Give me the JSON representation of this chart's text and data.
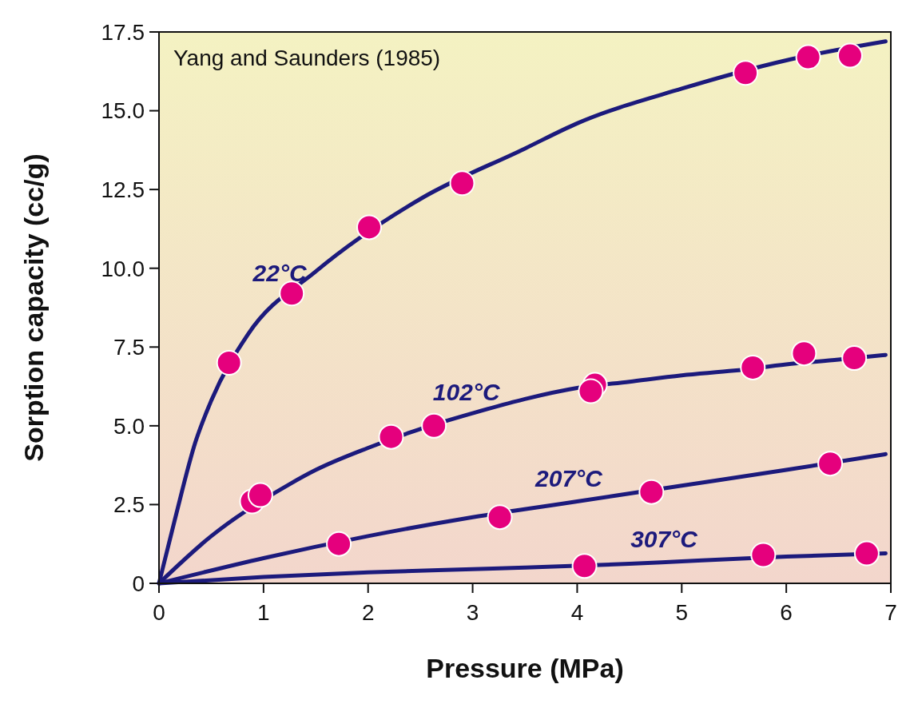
{
  "chart_data": {
    "type": "line",
    "xlabel": "Pressure (MPa)",
    "ylabel": "Sorption capacity (cc/g)",
    "annotations": [
      "Yang and Saunders (1985)"
    ],
    "xlim": [
      0,
      7
    ],
    "xticks": [
      0,
      1,
      2,
      3,
      4,
      5,
      6,
      7
    ],
    "ylim": [
      0,
      17.5
    ],
    "yticks": [
      0,
      2.5,
      {
        "value": 5,
        "label": "5.0"
      },
      7.5,
      {
        "value": 10,
        "label": "10.0"
      },
      12.5,
      {
        "value": 15,
        "label": "15.0"
      },
      17.5
    ],
    "grid": false,
    "series": [
      {
        "name": "22°C",
        "color": "#1c1a7c",
        "x": [
          0,
          0.15,
          0.35,
          0.5,
          0.85,
          1.5,
          2.5,
          3.5,
          4.0,
          5.0,
          6.0,
          6.95
        ],
        "values": [
          0,
          2.0,
          4.5,
          5.8,
          7.9,
          9.9,
          12.2,
          13.8,
          14.6,
          15.7,
          16.6,
          17.2
        ]
      },
      {
        "name": "102°C",
        "color": "#1c1a7c",
        "x": [
          0,
          0.5,
          1.25,
          1.5,
          2,
          2.5,
          3,
          3.5,
          4,
          4.5,
          5,
          5.5,
          6,
          6.5,
          6.95
        ],
        "values": [
          0,
          1.5,
          3.15,
          3.6,
          4.3,
          4.9,
          5.4,
          5.85,
          6.2,
          6.4,
          6.6,
          6.75,
          6.95,
          7.1,
          7.25
        ]
      },
      {
        "name": "207°C",
        "color": "#1c1a7c",
        "x": [
          0,
          1,
          2,
          3,
          4,
          5,
          6,
          6.95
        ],
        "values": [
          0,
          0.8,
          1.5,
          2.1,
          2.6,
          3.1,
          3.6,
          4.1
        ]
      },
      {
        "name": "307°C",
        "color": "#1c1a7c",
        "x": [
          0,
          1,
          2,
          3,
          3.5,
          4.5,
          5,
          6,
          6.95
        ],
        "values": [
          0,
          0.2,
          0.35,
          0.45,
          0.5,
          0.62,
          0.7,
          0.85,
          0.95
        ]
      },
      {
        "type": "scatter",
        "color": "#e5007d",
        "marker": "circle",
        "x": [
          0.67,
          1.27,
          2.01,
          2.9,
          5.61,
          6.21,
          6.61
        ],
        "values": [
          7.0,
          9.2,
          11.3,
          12.7,
          16.2,
          16.7,
          16.75
        ]
      },
      {
        "type": "scatter",
        "color": "#e5007d",
        "marker": "circle",
        "x": [
          0.89,
          0.97,
          2.22,
          2.63,
          4.17,
          4.13,
          5.68,
          6.17,
          6.65
        ],
        "values": [
          2.6,
          2.8,
          4.65,
          5.0,
          6.3,
          6.1,
          6.85,
          7.3,
          7.15
        ]
      },
      {
        "type": "scatter",
        "color": "#e5007d",
        "marker": "circle",
        "x": [
          1.72,
          3.26,
          4.71,
          6.42
        ],
        "values": [
          1.25,
          2.1,
          2.9,
          3.8
        ]
      },
      {
        "type": "scatter",
        "color": "#e5007d",
        "marker": "circle",
        "x": [
          4.07,
          5.78,
          6.77
        ],
        "values": [
          0.55,
          0.9,
          0.95
        ]
      }
    ]
  }
}
